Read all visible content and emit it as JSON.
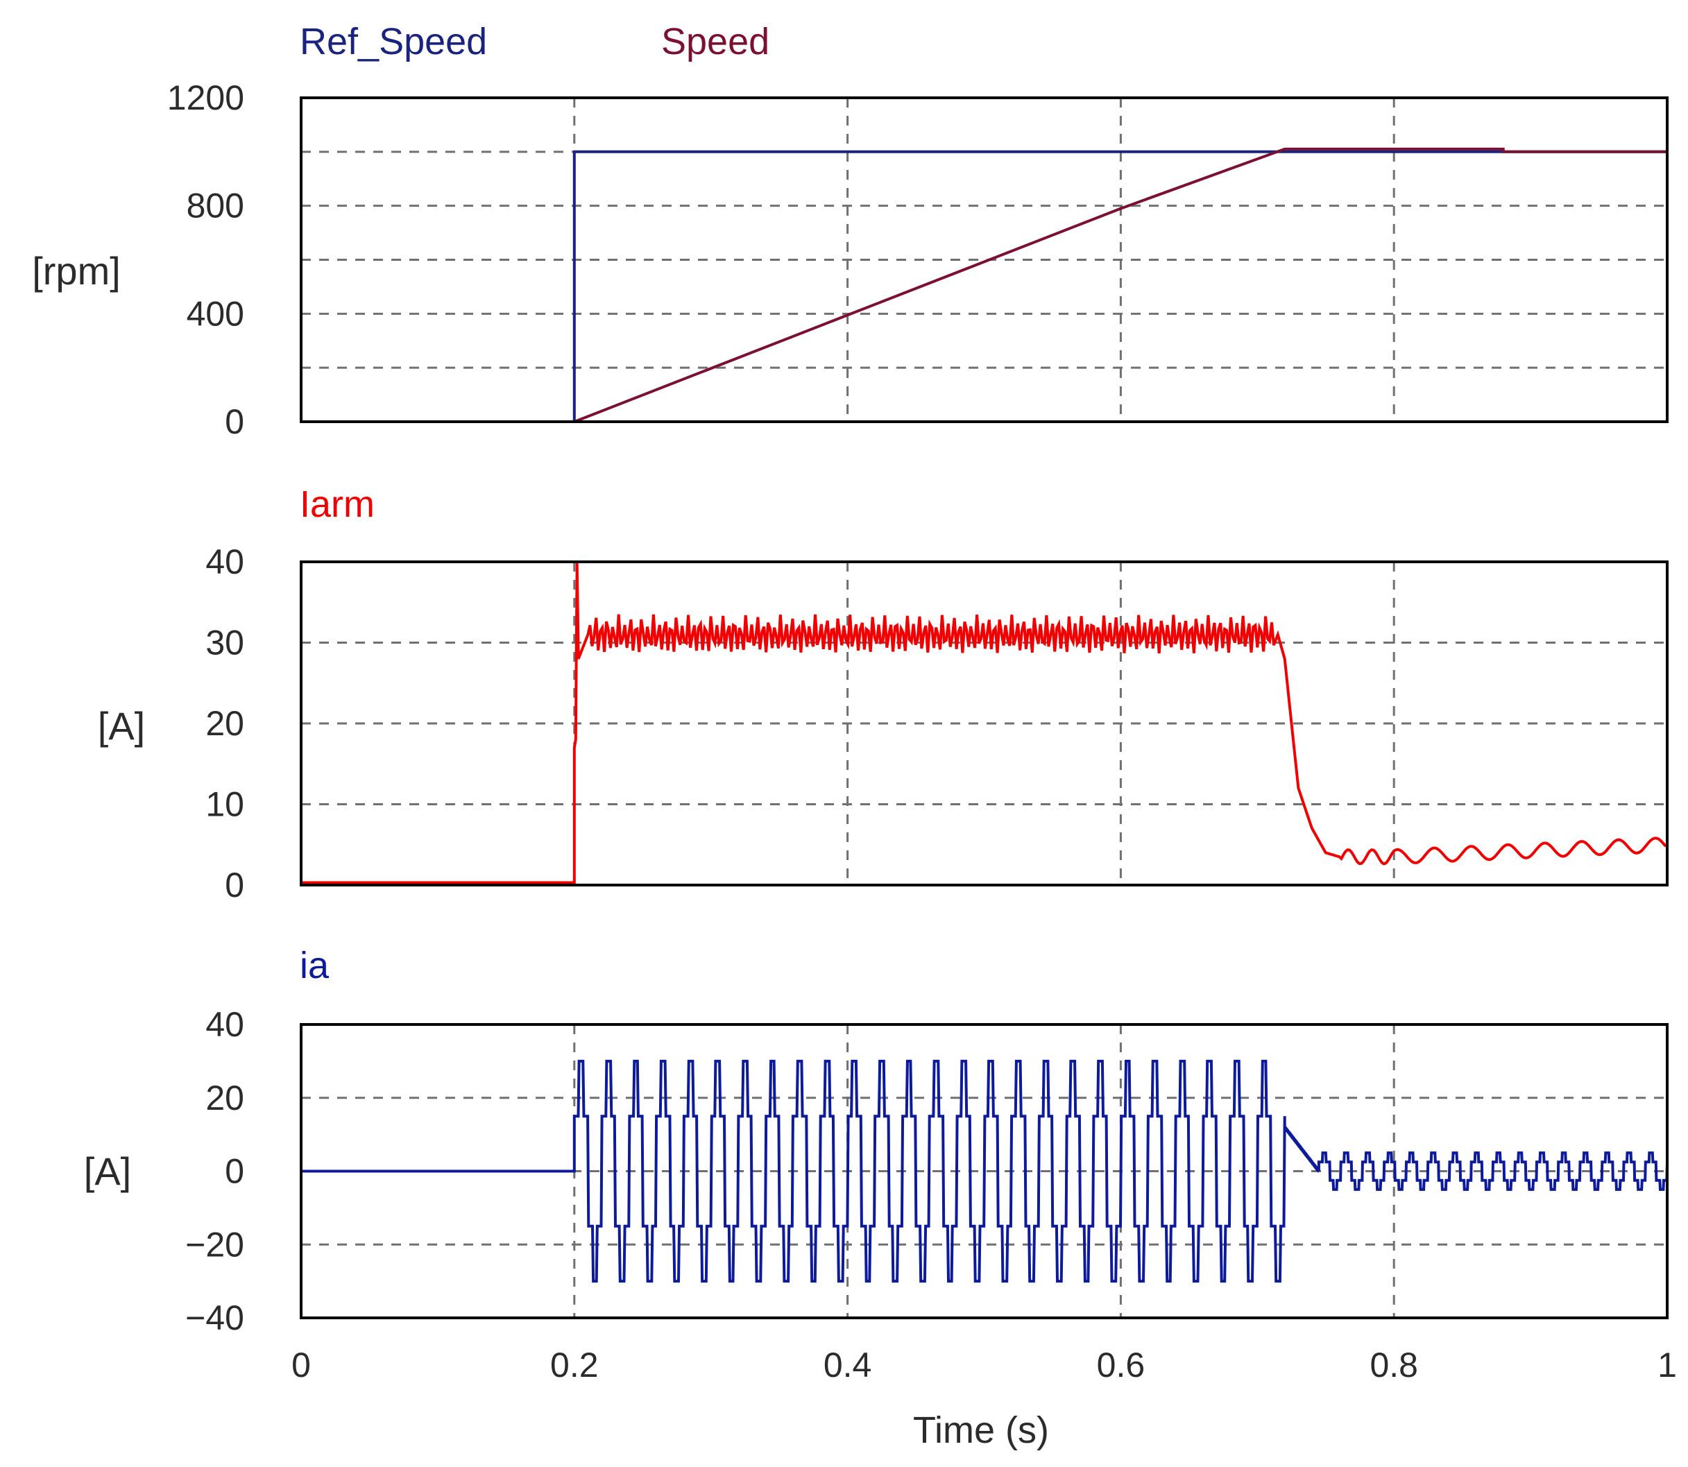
{
  "chart_data": [
    {
      "type": "line",
      "panel": "speed",
      "ylabel": "[rpm]",
      "xlim": [
        0,
        1
      ],
      "ylim": [
        0,
        1200
      ],
      "yticks": [
        0,
        400,
        800,
        1200
      ],
      "yticklabels": [
        "0",
        "400",
        "800",
        "1200"
      ],
      "ygrid": [
        200,
        400,
        600,
        800,
        1000
      ],
      "grid": true,
      "series": [
        {
          "name": "Ref_Speed",
          "color": "#1a237e",
          "x": [
            0.2,
            0.2,
            1.0
          ],
          "y": [
            0,
            1000,
            1000
          ]
        },
        {
          "name": "Speed",
          "color": "#7b1030",
          "x": [
            0.2,
            0.4,
            0.6,
            0.72,
            0.88,
            0.88,
            1.0
          ],
          "y": [
            0,
            395,
            790,
            1010,
            1010,
            1000,
            1000
          ]
        }
      ]
    },
    {
      "type": "line",
      "panel": "armature-current",
      "ylabel": "[A]",
      "xlim": [
        0,
        1
      ],
      "ylim": [
        0,
        40
      ],
      "yticks": [
        0,
        10,
        20,
        30,
        40
      ],
      "yticklabels": [
        "0",
        "10",
        "20",
        "30",
        "40"
      ],
      "ygrid": [
        10,
        20,
        30
      ],
      "grid": true,
      "series": [
        {
          "name": "Iarm",
          "color": "#f00000",
          "x": [
            0,
            0.2,
            0.2,
            0.201,
            0.202,
            0.203,
            0.21,
            0.715,
            0.72,
            0.725,
            0.73,
            0.74,
            0.75,
            0.76,
            0.8,
            1.0
          ],
          "y": [
            0.3,
            0.3,
            17,
            18,
            40,
            28,
            31,
            31,
            28,
            20,
            12,
            7,
            4,
            3.5,
            3.5,
            5
          ],
          "ripple": 2.5
        }
      ]
    },
    {
      "type": "line",
      "panel": "phase-current",
      "ylabel": "[A]",
      "xlim": [
        0,
        1
      ],
      "ylim": [
        -40,
        40
      ],
      "yticks": [
        -40,
        -20,
        0,
        20,
        40
      ],
      "yticklabels": [
        "−40",
        "−20",
        "0",
        "20",
        "40"
      ],
      "ygrid": [
        -20,
        0,
        20
      ],
      "xticks": [
        0,
        0.2,
        0.4,
        0.6,
        0.8,
        1
      ],
      "xticklabels": [
        "0",
        "0.2",
        "0.4",
        "0.6",
        "0.8",
        "1"
      ],
      "xlabel": "Time (s)",
      "grid": true,
      "series": [
        {
          "name": "ia",
          "color": "#0d1a9a",
          "segments": [
            {
              "x0": 0,
              "x1": 0.2,
              "shape": "flat",
              "level": 0
            },
            {
              "x0": 0.2,
              "x1": 0.72,
              "shape": "six-step",
              "amplitude": 30,
              "cycles": 26
            },
            {
              "x0": 0.72,
              "x1": 0.745,
              "shape": "decay",
              "from": 12,
              "to": 0
            },
            {
              "x0": 0.745,
              "x1": 1.0,
              "shape": "six-step",
              "amplitude": 5,
              "cycles": 16
            }
          ]
        }
      ]
    }
  ]
}
